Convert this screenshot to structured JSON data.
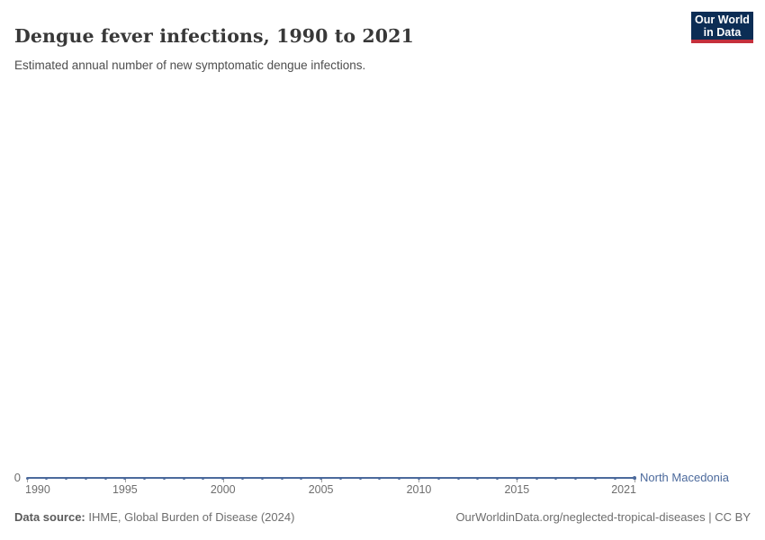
{
  "header": {
    "title": "Dengue fever infections, 1990 to 2021",
    "subtitle": "Estimated annual number of new symptomatic dengue infections."
  },
  "logo": {
    "line1": "Our World",
    "line2": "in Data",
    "bg_color": "#0c2d55",
    "accent_color": "#c5303c"
  },
  "chart": {
    "entity_label": "North Macedonia",
    "line_color": "#4c6a9c",
    "y_axis": {
      "zero_label": "0"
    },
    "x_axis": {
      "ticks": [
        {
          "label": "1990",
          "year": 1990,
          "align": "left"
        },
        {
          "label": "1995",
          "year": 1995,
          "align": "center"
        },
        {
          "label": "2000",
          "year": 2000,
          "align": "center"
        },
        {
          "label": "2005",
          "year": 2005,
          "align": "center"
        },
        {
          "label": "2010",
          "year": 2010,
          "align": "center"
        },
        {
          "label": "2015",
          "year": 2015,
          "align": "center"
        },
        {
          "label": "2021",
          "year": 2021,
          "align": "right"
        }
      ]
    }
  },
  "chart_data": {
    "type": "line",
    "title": "Dengue fever infections, 1990 to 2021",
    "subtitle": "Estimated annual number of new symptomatic dengue infections.",
    "x": [
      1990,
      1991,
      1992,
      1993,
      1994,
      1995,
      1996,
      1997,
      1998,
      1999,
      2000,
      2001,
      2002,
      2003,
      2004,
      2005,
      2006,
      2007,
      2008,
      2009,
      2010,
      2011,
      2012,
      2013,
      2014,
      2015,
      2016,
      2017,
      2018,
      2019,
      2020,
      2021
    ],
    "series": [
      {
        "name": "North Macedonia",
        "values": [
          0,
          0,
          0,
          0,
          0,
          0,
          0,
          0,
          0,
          0,
          0,
          0,
          0,
          0,
          0,
          0,
          0,
          0,
          0,
          0,
          0,
          0,
          0,
          0,
          0,
          0,
          0,
          0,
          0,
          0,
          0,
          0
        ]
      }
    ],
    "xlabel": "",
    "ylabel": "",
    "xlim": [
      1990,
      2021
    ],
    "y_ticks_shown": [
      "0"
    ],
    "grid": false,
    "legend_position": "end-of-line"
  },
  "footer": {
    "source_label": "Data source:",
    "source_text": " IHME, Global Burden of Disease (2024)",
    "license_text": "OurWorldinData.org/neglected-tropical-diseases | CC BY"
  }
}
